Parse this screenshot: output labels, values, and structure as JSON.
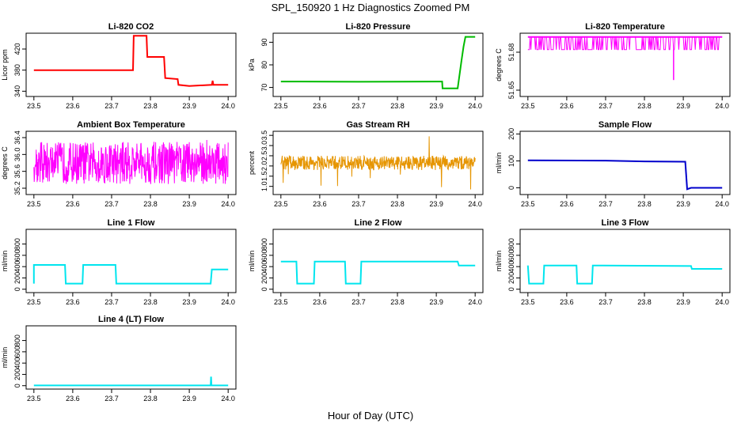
{
  "title": "SPL_150920  1 Hz Diagnostics Zoomed PM",
  "xlabel": "Hour of Day (UTC)",
  "chart_data": [
    {
      "type": "line",
      "title": "Li-820 CO2",
      "ylabel": "Licor ppm",
      "color": "#ff0000",
      "xlim": [
        23.48,
        24.02
      ],
      "ylim": [
        330,
        450
      ],
      "xticks": [
        "23.5",
        "23.6",
        "23.7",
        "23.8",
        "23.9",
        "24.0"
      ],
      "yticks": [
        "340",
        "380",
        "420"
      ],
      "series": [
        {
          "points": [
            [
              23.5,
              380
            ],
            [
              23.755,
              380
            ],
            [
              23.757,
              445
            ],
            [
              23.79,
              445
            ],
            [
              23.792,
              405
            ],
            [
              23.835,
              405
            ],
            [
              23.838,
              365
            ],
            [
              23.87,
              363
            ],
            [
              23.872,
              352
            ],
            [
              23.9,
              350
            ],
            [
              23.958,
              352
            ],
            [
              23.96,
              360
            ],
            [
              23.962,
              352
            ],
            [
              24.0,
              352
            ]
          ]
        }
      ]
    },
    {
      "type": "line",
      "title": "Li-820 Pressure",
      "ylabel": "kPa",
      "color": "#00bb00",
      "xlim": [
        23.48,
        24.02
      ],
      "ylim": [
        66,
        94
      ],
      "xticks": [
        "23.5",
        "23.6",
        "23.7",
        "23.8",
        "23.9",
        "24.0"
      ],
      "yticks": [
        "70",
        "80",
        "90"
      ],
      "series": [
        {
          "points": [
            [
              23.5,
              72.6
            ],
            [
              23.7,
              72.5
            ],
            [
              23.9,
              72.6
            ],
            [
              23.915,
              72.6
            ],
            [
              23.916,
              69.6
            ],
            [
              23.955,
              69.6
            ],
            [
              23.965,
              82
            ],
            [
              23.97,
              88
            ],
            [
              23.975,
              92.4
            ],
            [
              24.0,
              92.4
            ]
          ]
        }
      ]
    },
    {
      "type": "line",
      "title": "Li-820 Temperature",
      "ylabel": "degrees C",
      "color": "#ff00ff",
      "xlim": [
        23.48,
        24.02
      ],
      "ylim": [
        51.645,
        51.695
      ],
      "xticks": [
        "23.5",
        "23.6",
        "23.7",
        "23.8",
        "23.9",
        "24.0"
      ],
      "yticks": [
        "51.65",
        "51.68"
      ],
      "series": [
        {
          "points": [
            [
              23.5,
              51.692
            ],
            [
              23.52,
              51.692
            ],
            [
              23.88,
              51.692
            ],
            [
              23.9,
              51.692
            ],
            [
              24.0,
              51.692
            ]
          ]
        }
      ],
      "band": {
        "low": 51.682,
        "high": 51.692,
        "spike": [
          23.875,
          51.658
        ]
      }
    },
    {
      "type": "line",
      "title": "Ambient Box Temperature",
      "ylabel": "degrees C",
      "color": "#ff00ff",
      "xlim": [
        23.48,
        24.02
      ],
      "ylim": [
        35.05,
        36.55
      ],
      "xticks": [
        "23.5",
        "23.6",
        "23.7",
        "23.8",
        "23.9",
        "24.0"
      ],
      "yticks": [
        "35.2",
        "35.6",
        "36.0",
        "36.4"
      ],
      "noise": {
        "low": 35.3,
        "high": 36.3,
        "min": 35.15,
        "max": 36.45
      }
    },
    {
      "type": "line",
      "title": "Gas Stream RH",
      "ylabel": "percent",
      "color": "#e69500",
      "xlim": [
        23.48,
        24.02
      ],
      "ylim": [
        0.6,
        3.7
      ],
      "xticks": [
        "23.5",
        "23.6",
        "23.7",
        "23.8",
        "23.9",
        "24.0"
      ],
      "yticks": [
        "1.0",
        "1.5",
        "2.0",
        "2.5",
        "3.0",
        "3.5"
      ],
      "noise": {
        "low": 1.8,
        "high": 2.5,
        "min": 0.8,
        "max": 3.5
      }
    },
    {
      "type": "line",
      "title": "Sample Flow",
      "ylabel": "ml/min",
      "color": "#0000cc",
      "xlim": [
        23.48,
        24.02
      ],
      "ylim": [
        -25,
        210
      ],
      "xticks": [
        "23.5",
        "23.6",
        "23.7",
        "23.8",
        "23.9",
        "24.0"
      ],
      "yticks": [
        "0",
        "100",
        "200"
      ],
      "series": [
        {
          "points": [
            [
              23.5,
              102
            ],
            [
              23.7,
              101
            ],
            [
              23.8,
              98
            ],
            [
              23.905,
              97
            ],
            [
              23.91,
              -5
            ],
            [
              23.92,
              0
            ],
            [
              24.0,
              0
            ]
          ]
        }
      ]
    },
    {
      "type": "line",
      "title": "Line 1 Flow",
      "ylabel": "ml/min",
      "color": "#00e5ee",
      "xlim": [
        23.48,
        24.02
      ],
      "ylim": [
        -60,
        1060
      ],
      "xticks": [
        "23.5",
        "23.6",
        "23.7",
        "23.8",
        "23.9",
        "24.0"
      ],
      "yticks": [
        "0",
        "200",
        "400",
        "600",
        "800"
      ],
      "series": [
        {
          "points": [
            [
              23.5,
              100
            ],
            [
              23.5,
              430
            ],
            [
              23.58,
              430
            ],
            [
              23.582,
              100
            ],
            [
              23.625,
              100
            ],
            [
              23.627,
              430
            ],
            [
              23.71,
              430
            ],
            [
              23.712,
              100
            ],
            [
              23.955,
              100
            ],
            [
              23.958,
              350
            ],
            [
              24.0,
              350
            ]
          ]
        }
      ]
    },
    {
      "type": "line",
      "title": "Line 2 Flow",
      "ylabel": "ml/min",
      "color": "#00e5ee",
      "xlim": [
        23.48,
        24.02
      ],
      "ylim": [
        -60,
        1060
      ],
      "xticks": [
        "23.5",
        "23.6",
        "23.7",
        "23.8",
        "23.9",
        "24.0"
      ],
      "yticks": [
        "0",
        "200",
        "400",
        "600",
        "800"
      ],
      "series": [
        {
          "points": [
            [
              23.5,
              490
            ],
            [
              23.54,
              490
            ],
            [
              23.542,
              100
            ],
            [
              23.585,
              100
            ],
            [
              23.587,
              490
            ],
            [
              23.665,
              490
            ],
            [
              23.667,
              100
            ],
            [
              23.705,
              100
            ],
            [
              23.707,
              490
            ],
            [
              23.955,
              490
            ],
            [
              23.958,
              420
            ],
            [
              24.0,
              420
            ]
          ]
        }
      ]
    },
    {
      "type": "line",
      "title": "Line 3 Flow",
      "ylabel": "ml/min",
      "color": "#00e5ee",
      "xlim": [
        23.48,
        24.02
      ],
      "ylim": [
        -60,
        1060
      ],
      "xticks": [
        "23.5",
        "23.6",
        "23.7",
        "23.8",
        "23.9",
        "24.0"
      ],
      "yticks": [
        "0",
        "200",
        "400",
        "600",
        "800"
      ],
      "series": [
        {
          "points": [
            [
              23.5,
              420
            ],
            [
              23.503,
              100
            ],
            [
              23.54,
              100
            ],
            [
              23.542,
              420
            ],
            [
              23.625,
              420
            ],
            [
              23.627,
              100
            ],
            [
              23.665,
              100
            ],
            [
              23.667,
              420
            ],
            [
              23.92,
              410
            ],
            [
              23.922,
              360
            ],
            [
              24.0,
              360
            ]
          ]
        }
      ]
    },
    {
      "type": "line",
      "title": "Line 4 (LT) Flow",
      "ylabel": "ml/min",
      "color": "#00e5ee",
      "xlim": [
        23.48,
        24.02
      ],
      "ylim": [
        -60,
        1060
      ],
      "xticks": [
        "23.5",
        "23.6",
        "23.7",
        "23.8",
        "23.9",
        "24.0"
      ],
      "yticks": [
        "0",
        "200",
        "400",
        "600",
        "800"
      ],
      "series": [
        {
          "points": [
            [
              23.5,
              5
            ],
            [
              23.955,
              5
            ],
            [
              23.956,
              160
            ],
            [
              23.957,
              5
            ],
            [
              24.0,
              5
            ]
          ]
        }
      ]
    }
  ]
}
